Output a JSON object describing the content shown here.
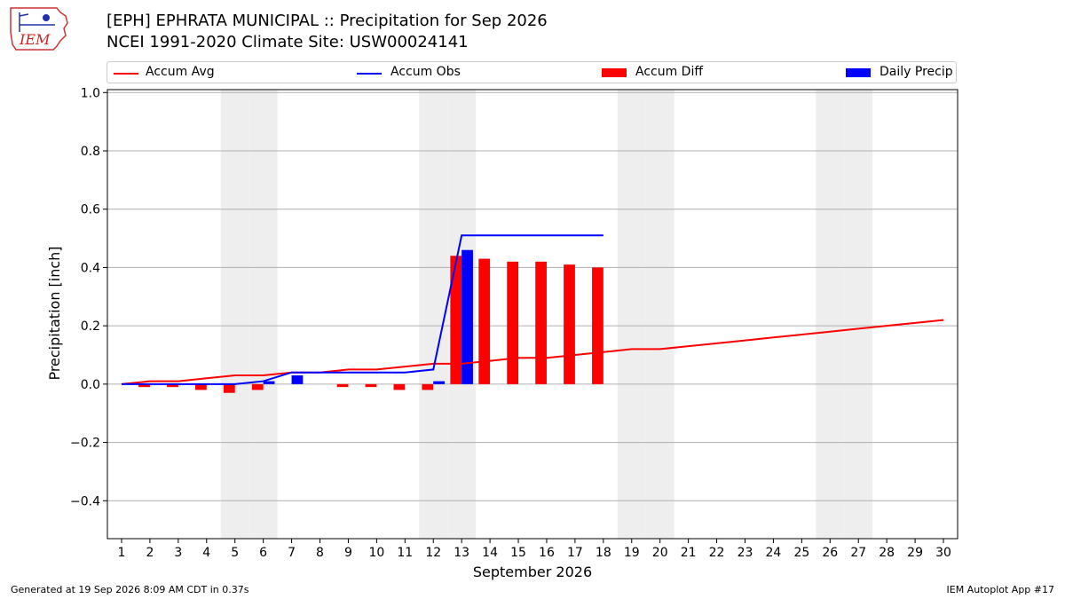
{
  "header": {
    "logo_text": "IEM",
    "title_line1": "[EPH] EPHRATA MUNICIPAL :: Precipitation for Sep 2026",
    "title_line2": "NCEI 1991-2020 Climate Site: USW00024141"
  },
  "footer": {
    "generated": "Generated at 19 Sep 2026 8:09 AM CDT in 0.37s",
    "app": "IEM Autoplot App #17"
  },
  "colors": {
    "avg": "#ff0000",
    "obs": "#0000ff",
    "diff": "#ff0000",
    "daily": "#0000ff",
    "weekend_shade": "#eeeeee",
    "grid": "#b0b0b0"
  },
  "chart_data": {
    "type": "bar",
    "xlabel": "September 2026",
    "ylabel": "Precipitation [inch]",
    "ylim": [
      -0.53,
      1.01
    ],
    "yticks": [
      -0.4,
      -0.2,
      0.0,
      0.2,
      0.4,
      0.6,
      0.8,
      1.0
    ],
    "ytick_labels": [
      "−0.4",
      "−0.2",
      "0.0",
      "0.2",
      "0.4",
      "0.6",
      "0.8",
      "1.0"
    ],
    "grid": "horizontal",
    "legend_position": "top",
    "days": [
      1,
      2,
      3,
      4,
      5,
      6,
      7,
      8,
      9,
      10,
      11,
      12,
      13,
      14,
      15,
      16,
      17,
      18,
      19,
      20,
      21,
      22,
      23,
      24,
      25,
      26,
      27,
      28,
      29,
      30
    ],
    "weekend_days": [
      5,
      6,
      12,
      13,
      19,
      20,
      26,
      27
    ],
    "series": [
      {
        "name": "Accum Avg",
        "kind": "line",
        "values": [
          0.0,
          0.01,
          0.01,
          0.02,
          0.03,
          0.03,
          0.04,
          0.04,
          0.05,
          0.05,
          0.06,
          0.07,
          0.07,
          0.08,
          0.09,
          0.09,
          0.1,
          0.11,
          0.12,
          0.12,
          0.13,
          0.14,
          0.15,
          0.16,
          0.17,
          0.18,
          0.19,
          0.2,
          0.21,
          0.22
        ]
      },
      {
        "name": "Accum Obs",
        "kind": "line",
        "days": [
          1,
          2,
          3,
          4,
          5,
          6,
          7,
          8,
          9,
          10,
          11,
          12,
          13,
          14,
          15,
          16,
          17,
          18
        ],
        "values": [
          0.0,
          0.0,
          0.0,
          0.0,
          0.0,
          0.01,
          0.04,
          0.04,
          0.04,
          0.04,
          0.04,
          0.05,
          0.51,
          0.51,
          0.51,
          0.51,
          0.51,
          0.51
        ]
      },
      {
        "name": "Accum Diff",
        "kind": "bar",
        "days": [
          1,
          2,
          3,
          4,
          5,
          6,
          7,
          8,
          9,
          10,
          11,
          12,
          13,
          14,
          15,
          16,
          17,
          18
        ],
        "values": [
          0.0,
          -0.01,
          -0.01,
          -0.02,
          -0.03,
          -0.02,
          0.0,
          0.0,
          -0.01,
          -0.01,
          -0.02,
          -0.02,
          0.44,
          0.43,
          0.42,
          0.42,
          0.41,
          0.4
        ]
      },
      {
        "name": "Daily Precip",
        "kind": "bar",
        "days": [
          1,
          2,
          3,
          4,
          5,
          6,
          7,
          8,
          9,
          10,
          11,
          12,
          13,
          14,
          15,
          16,
          17,
          18
        ],
        "values": [
          0.0,
          0.0,
          0.0,
          0.0,
          0.0,
          0.01,
          0.03,
          0.0,
          0.0,
          0.0,
          0.0,
          0.01,
          0.46,
          0.0,
          0.0,
          0.0,
          0.0,
          0.0
        ]
      }
    ]
  }
}
